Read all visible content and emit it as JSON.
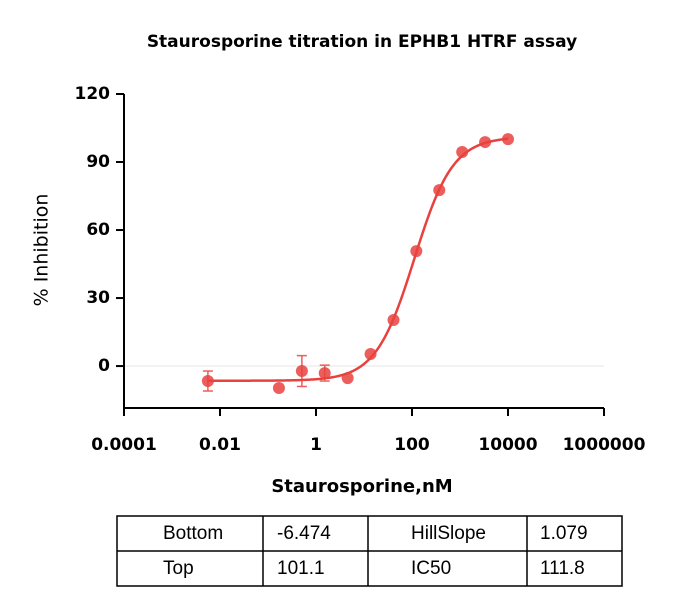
{
  "chart_data": {
    "type": "scatter",
    "title": "Staurosporine titration in EPHB1 HTRF assay",
    "x_label": "Staurosporine,nM",
    "y_label": "% Inhibition",
    "x_scale": "log",
    "xlim": [
      0.0001,
      1000000
    ],
    "xticks": [
      0.0001,
      0.01,
      1,
      100,
      10000,
      1000000
    ],
    "ylim": [
      -18.5,
      120
    ],
    "yticks": [
      0,
      30,
      60,
      90,
      120
    ],
    "zero_line": true,
    "series": [
      {
        "color": "#e8423f",
        "x": [
          0.0056,
          0.169,
          0.508,
          1.52,
          4.57,
          13.7,
          41.2,
          123,
          370,
          1111,
          3333,
          10000
        ],
        "values": [
          -6.6,
          -9.7,
          -2.2,
          -3.1,
          -5.3,
          5.3,
          20.3,
          50.7,
          77.6,
          94.4,
          98.8,
          100.1
        ],
        "errors": [
          4.4,
          null,
          6.8,
          3.5,
          null,
          null,
          null,
          null,
          null,
          null,
          null,
          null
        ]
      }
    ],
    "fit_table": {
      "rows": [
        [
          "Bottom",
          -6.474,
          "HillSlope",
          1.079
        ],
        [
          "Top",
          101.1,
          "IC50",
          111.8
        ]
      ]
    }
  }
}
